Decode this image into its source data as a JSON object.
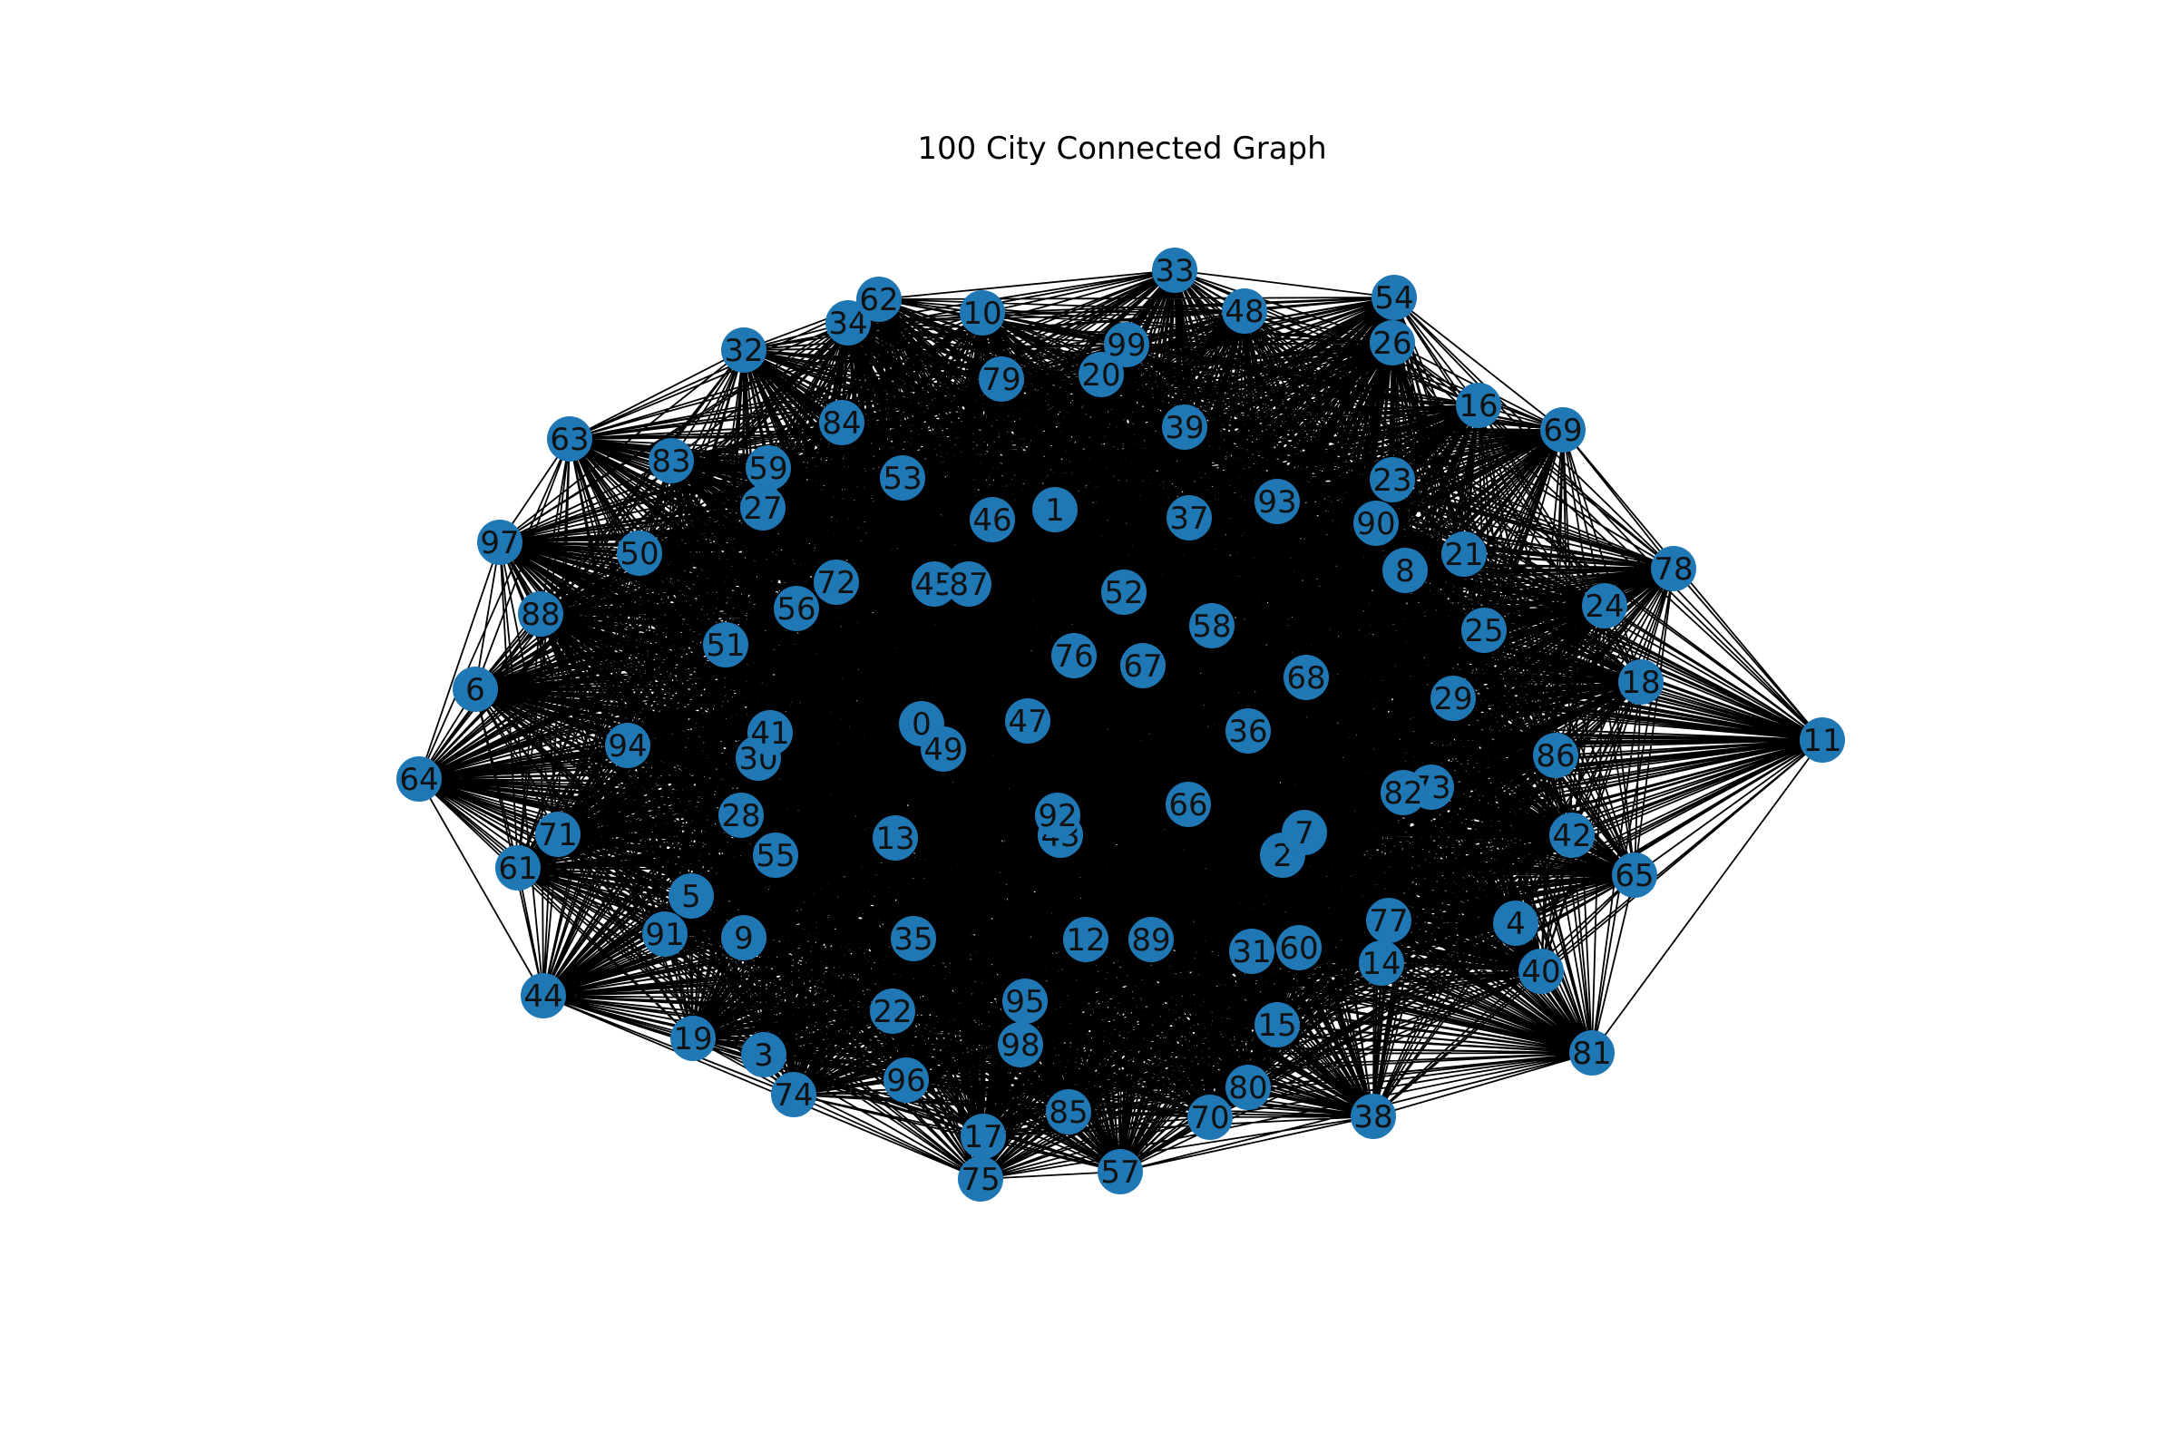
{
  "title": "100 City Connected Graph",
  "colors": {
    "node": "#1f77b4",
    "edge": "#000000",
    "label": "#111111",
    "background": "#ffffff"
  },
  "graph": {
    "node_count": 100,
    "fully_connected": true,
    "node_labels": [
      "0",
      "1",
      "2",
      "3",
      "4",
      "5",
      "6",
      "7",
      "8",
      "9",
      "10",
      "11",
      "12",
      "13",
      "14",
      "15",
      "16",
      "17",
      "18",
      "19",
      "20",
      "21",
      "22",
      "23",
      "24",
      "25",
      "26",
      "27",
      "28",
      "29",
      "30",
      "31",
      "32",
      "33",
      "34",
      "35",
      "36",
      "37",
      "38",
      "39",
      "40",
      "41",
      "42",
      "43",
      "44",
      "45",
      "46",
      "47",
      "48",
      "49",
      "50",
      "51",
      "52",
      "53",
      "54",
      "55",
      "56",
      "57",
      "58",
      "59",
      "60",
      "61",
      "62",
      "63",
      "64",
      "65",
      "66",
      "67",
      "68",
      "69",
      "70",
      "71",
      "72",
      "73",
      "74",
      "75",
      "76",
      "77",
      "78",
      "79",
      "80",
      "81",
      "82",
      "83",
      "84",
      "85",
      "86",
      "87",
      "88",
      "89",
      "90",
      "91",
      "92",
      "93",
      "94",
      "95",
      "96",
      "97",
      "98",
      "99"
    ]
  }
}
